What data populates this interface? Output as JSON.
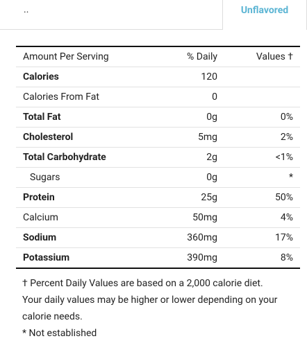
{
  "tabs": {
    "breadcrumb": "..",
    "active": "Unflavored"
  },
  "table": {
    "header": [
      "Amount Per Serving",
      "% Daily",
      "Values †"
    ],
    "rows": [
      {
        "cells": [
          "Calories",
          "120"
        ],
        "bold": true
      },
      {
        "cells": [
          "Calories From Fat",
          "0"
        ]
      },
      {
        "cells": [
          "Total Fat",
          "0g",
          "0%"
        ],
        "bold": true
      },
      {
        "cells": [
          "Cholesterol",
          "5mg",
          "2%"
        ],
        "bold": true
      },
      {
        "cells": [
          "Total Carbohydrate",
          "2g",
          "<1%"
        ],
        "bold": true
      },
      {
        "cells": [
          "Sugars",
          "0g",
          "*"
        ],
        "indent": true
      },
      {
        "cells": [
          "Protein",
          "25g",
          "50%"
        ],
        "bold": true
      },
      {
        "cells": [
          "Calcium",
          "50mg",
          "4%"
        ]
      },
      {
        "cells": [
          "Sodium",
          "360mg",
          "17%"
        ],
        "bold": true
      },
      {
        "cells": [
          "Potassium",
          "390mg",
          "8%"
        ],
        "bold": true
      }
    ]
  },
  "footnotes": [
    "† Percent Daily Values are based on a 2,000 calorie diet. Your daily values may be higher or lower depending on your calorie needs.",
    "* Not established"
  ]
}
